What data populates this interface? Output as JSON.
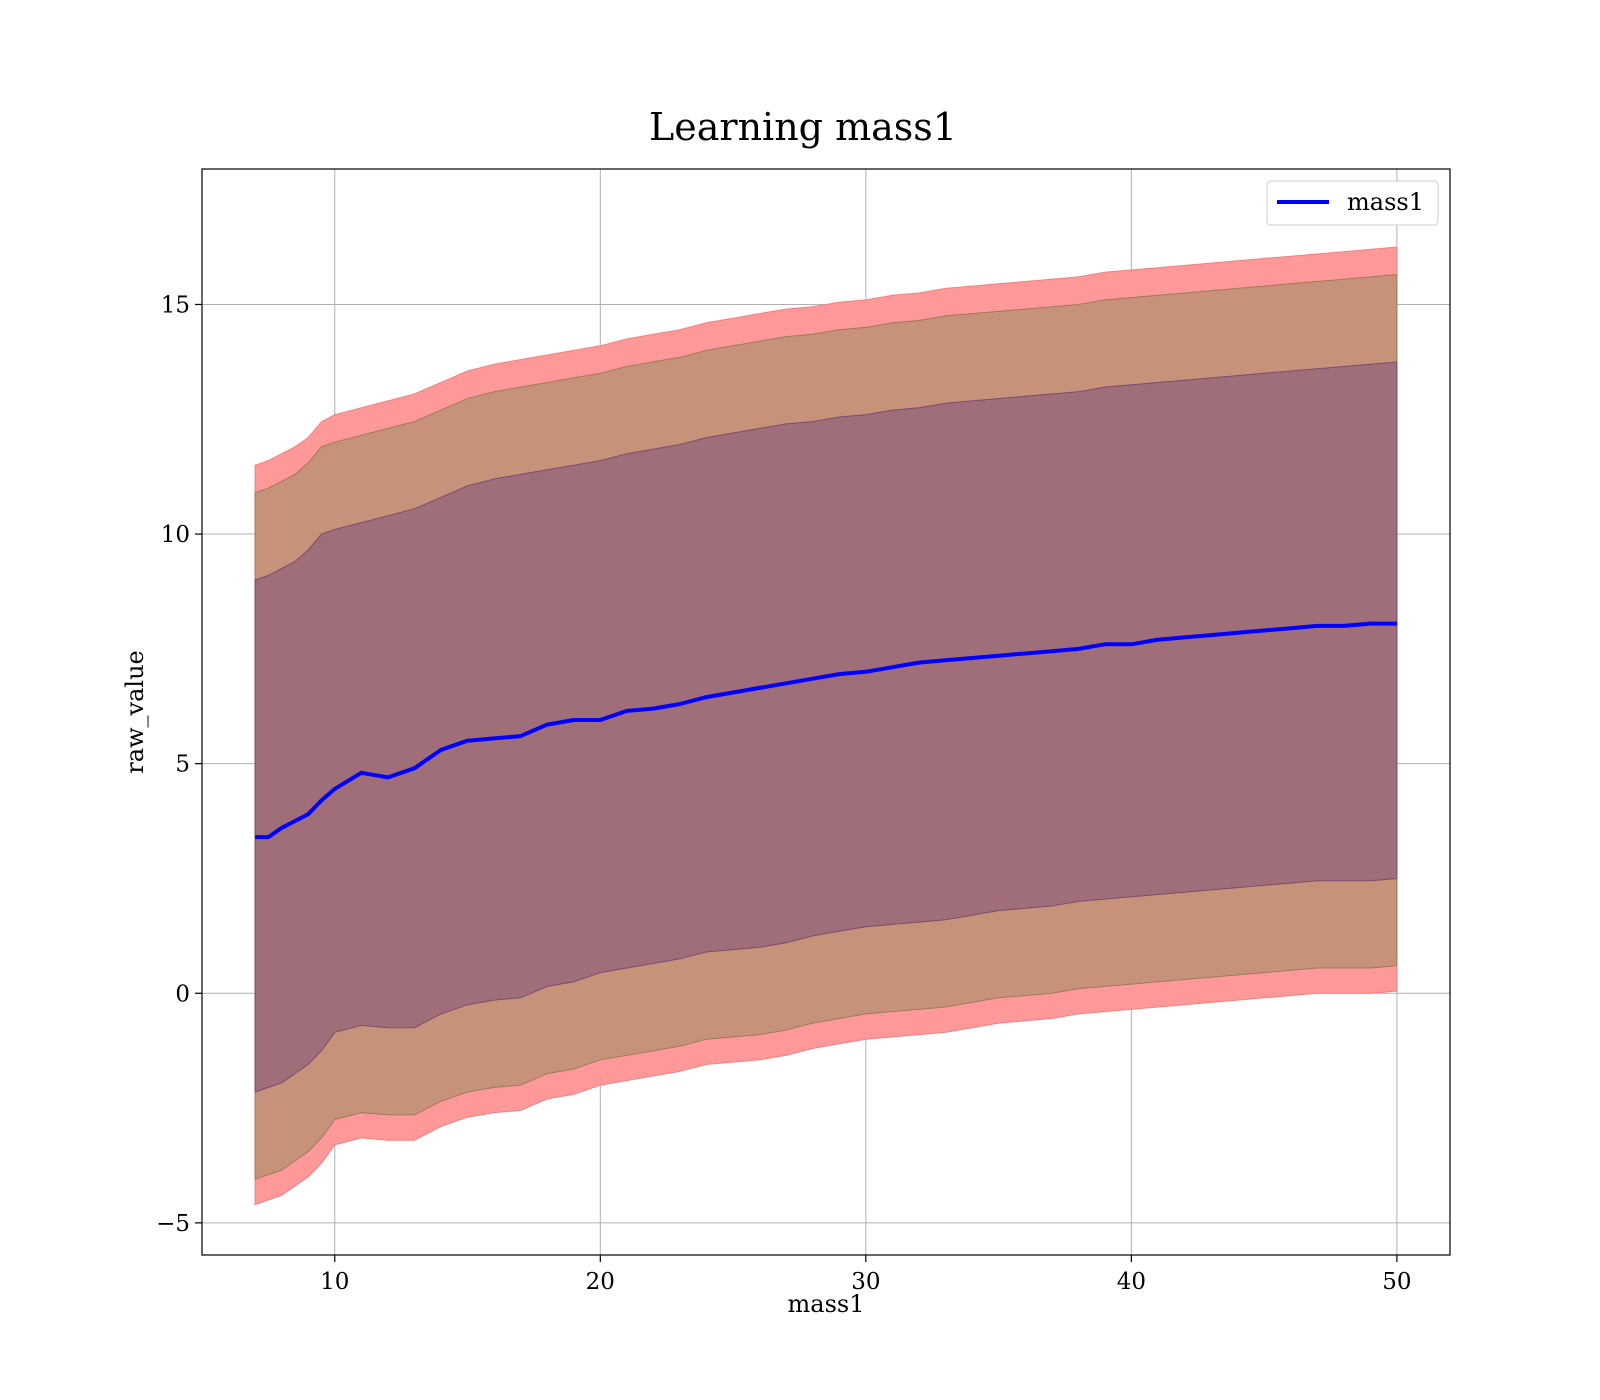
{
  "chart_data": {
    "type": "area",
    "title": "Learning mass1",
    "xlabel": "mass1",
    "ylabel": "raw_value",
    "xlim": [
      5,
      52
    ],
    "ylim": [
      -5.7,
      17.95
    ],
    "x_ticks": [
      10,
      20,
      30,
      40,
      50
    ],
    "y_ticks": [
      -5,
      0,
      5,
      10,
      15
    ],
    "x_tick_labels": [
      "10",
      "20",
      "30",
      "40",
      "50"
    ],
    "y_tick_labels": [
      "−5",
      "0",
      "5",
      "10",
      "15"
    ],
    "grid": true,
    "legend": {
      "position": "top-right",
      "entries": [
        "mass1"
      ]
    },
    "colors": {
      "line": "#0000ff",
      "band_outer": "#ff9999",
      "band_middle": "#c6937a",
      "band_inner": "#a06e79",
      "outer_edge": "#f08080",
      "middle_edge": "#a07a55",
      "inner_edge": "#7b4c6e"
    },
    "x": [
      7.0,
      7.5,
      8.0,
      8.5,
      9.0,
      9.5,
      10.0,
      11.0,
      12.0,
      13.0,
      14.0,
      15.0,
      16.0,
      17.0,
      18.0,
      19.0,
      20.0,
      21.0,
      22.0,
      23.0,
      24.0,
      25.0,
      26.0,
      27.0,
      28.0,
      29.0,
      30.0,
      31.0,
      32.0,
      33.0,
      34.0,
      35.0,
      36.0,
      37.0,
      38.0,
      39.0,
      40.0,
      41.0,
      42.0,
      43.0,
      44.0,
      45.0,
      46.0,
      47.0,
      48.0,
      49.0,
      50.0
    ],
    "series": [
      {
        "name": "mass1",
        "values": [
          3.4,
          3.4,
          3.6,
          3.75,
          3.9,
          4.2,
          4.45,
          4.8,
          4.7,
          4.9,
          5.3,
          5.5,
          5.55,
          5.6,
          5.85,
          5.95,
          5.95,
          6.15,
          6.2,
          6.3,
          6.45,
          6.55,
          6.65,
          6.75,
          6.85,
          6.95,
          7.0,
          7.1,
          7.2,
          7.25,
          7.3,
          7.35,
          7.4,
          7.45,
          7.5,
          7.6,
          7.6,
          7.7,
          7.75,
          7.8,
          7.85,
          7.9,
          7.95,
          8.0,
          8.0,
          8.05,
          8.05
        ]
      }
    ],
    "bands": [
      {
        "level": "outer",
        "upper": [
          11.5,
          11.6,
          11.75,
          11.9,
          12.1,
          12.45,
          12.6,
          12.75,
          12.9,
          13.05,
          13.3,
          13.55,
          13.7,
          13.8,
          13.9,
          14.0,
          14.1,
          14.25,
          14.35,
          14.45,
          14.6,
          14.7,
          14.8,
          14.9,
          14.95,
          15.05,
          15.1,
          15.2,
          15.25,
          15.35,
          15.4,
          15.45,
          15.5,
          15.55,
          15.6,
          15.7,
          15.75,
          15.8,
          15.85,
          15.9,
          15.95,
          16.0,
          16.05,
          16.1,
          16.15,
          16.2,
          16.25
        ],
        "lower": [
          -4.6,
          -4.5,
          -4.4,
          -4.2,
          -4.0,
          -3.7,
          -3.3,
          -3.15,
          -3.2,
          -3.2,
          -2.9,
          -2.7,
          -2.6,
          -2.55,
          -2.3,
          -2.2,
          -2.0,
          -1.9,
          -1.8,
          -1.7,
          -1.55,
          -1.5,
          -1.45,
          -1.35,
          -1.2,
          -1.1,
          -1.0,
          -0.95,
          -0.9,
          -0.85,
          -0.75,
          -0.65,
          -0.6,
          -0.55,
          -0.45,
          -0.4,
          -0.35,
          -0.3,
          -0.25,
          -0.2,
          -0.15,
          -0.1,
          -0.05,
          0.0,
          0.0,
          0.0,
          0.05
        ]
      },
      {
        "level": "middle",
        "upper": [
          10.9,
          11.0,
          11.15,
          11.3,
          11.55,
          11.9,
          12.0,
          12.15,
          12.3,
          12.45,
          12.7,
          12.95,
          13.1,
          13.2,
          13.3,
          13.4,
          13.5,
          13.65,
          13.75,
          13.85,
          14.0,
          14.1,
          14.2,
          14.3,
          14.35,
          14.45,
          14.5,
          14.6,
          14.65,
          14.75,
          14.8,
          14.85,
          14.9,
          14.95,
          15.0,
          15.1,
          15.15,
          15.2,
          15.25,
          15.3,
          15.35,
          15.4,
          15.45,
          15.5,
          15.55,
          15.6,
          15.65
        ],
        "lower": [
          -4.05,
          -3.95,
          -3.85,
          -3.65,
          -3.45,
          -3.15,
          -2.75,
          -2.6,
          -2.65,
          -2.65,
          -2.35,
          -2.15,
          -2.05,
          -2.0,
          -1.75,
          -1.65,
          -1.45,
          -1.35,
          -1.25,
          -1.15,
          -1.0,
          -0.95,
          -0.9,
          -0.8,
          -0.65,
          -0.55,
          -0.45,
          -0.4,
          -0.35,
          -0.3,
          -0.2,
          -0.1,
          -0.05,
          0.0,
          0.1,
          0.15,
          0.2,
          0.25,
          0.3,
          0.35,
          0.4,
          0.45,
          0.5,
          0.55,
          0.55,
          0.55,
          0.6
        ]
      },
      {
        "level": "inner",
        "upper": [
          9.0,
          9.1,
          9.25,
          9.4,
          9.65,
          10.0,
          10.1,
          10.25,
          10.4,
          10.55,
          10.8,
          11.05,
          11.2,
          11.3,
          11.4,
          11.5,
          11.6,
          11.75,
          11.85,
          11.95,
          12.1,
          12.2,
          12.3,
          12.4,
          12.45,
          12.55,
          12.6,
          12.7,
          12.75,
          12.85,
          12.9,
          12.95,
          13.0,
          13.05,
          13.1,
          13.2,
          13.25,
          13.3,
          13.35,
          13.4,
          13.45,
          13.5,
          13.55,
          13.6,
          13.65,
          13.7,
          13.75
        ],
        "lower": [
          -2.15,
          -2.05,
          -1.95,
          -1.75,
          -1.55,
          -1.25,
          -0.85,
          -0.7,
          -0.75,
          -0.75,
          -0.45,
          -0.25,
          -0.15,
          -0.1,
          0.15,
          0.25,
          0.45,
          0.55,
          0.65,
          0.75,
          0.9,
          0.95,
          1.0,
          1.1,
          1.25,
          1.35,
          1.45,
          1.5,
          1.55,
          1.6,
          1.7,
          1.8,
          1.85,
          1.9,
          2.0,
          2.05,
          2.1,
          2.15,
          2.2,
          2.25,
          2.3,
          2.35,
          2.4,
          2.45,
          2.45,
          2.45,
          2.5
        ]
      }
    ]
  }
}
